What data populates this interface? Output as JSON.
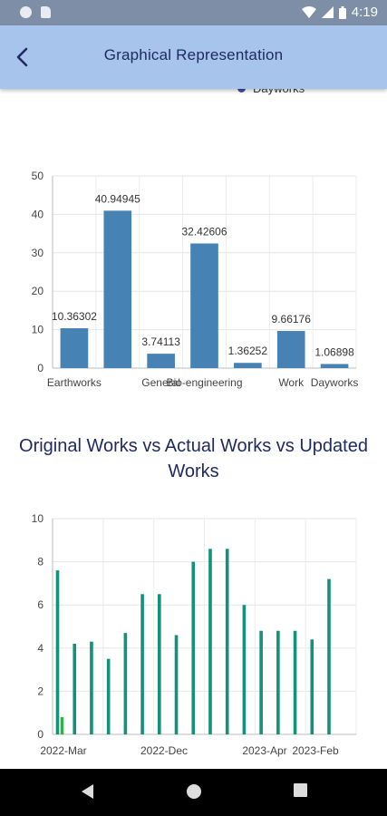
{
  "status_bar": {
    "time": "4:19"
  },
  "header": {
    "title": "Graphical Representation",
    "back_icon": "back-arrow-icon"
  },
  "legend_peek": {
    "label": "Dayworks"
  },
  "charts_section": {
    "second_title": "Original Works vs Actual Works  vs Updated Works"
  },
  "chart_data": [
    {
      "type": "bar",
      "categories": [
        "Earthworks",
        "",
        "General",
        "Bio-engineering",
        "",
        "Work",
        "Dayworks"
      ],
      "values": [
        10.36302,
        40.94945,
        3.74113,
        32.42606,
        1.36252,
        9.66176,
        1.06898
      ],
      "data_labels": [
        "10.36302",
        "40.94945",
        "3.74113",
        "32.42606",
        "1.36252",
        "9.66176",
        "1.06898"
      ],
      "ylim": [
        0,
        50
      ],
      "yticks": [
        0,
        10,
        20,
        30,
        40,
        50
      ],
      "grid": true,
      "color": "#4682b4"
    },
    {
      "type": "bar",
      "series": [
        {
          "values": [
            7.6,
            4.2,
            4.3,
            3.5,
            4.7,
            6.5,
            6.5,
            4.6,
            8.0,
            8.6,
            8.6,
            6.0,
            4.8,
            4.8,
            4.8,
            4.4,
            7.2
          ],
          "color": "#13917a"
        },
        {
          "values": [
            0.8
          ],
          "color": "#27b83c"
        }
      ],
      "x_tick_labels": [
        "2022-Mar",
        "2022-Dec",
        "2023-Apr",
        "2023-Feb"
      ],
      "ylim": [
        0,
        10
      ],
      "yticks": [
        0,
        2,
        4,
        6,
        8,
        10
      ],
      "grid": true
    }
  ]
}
